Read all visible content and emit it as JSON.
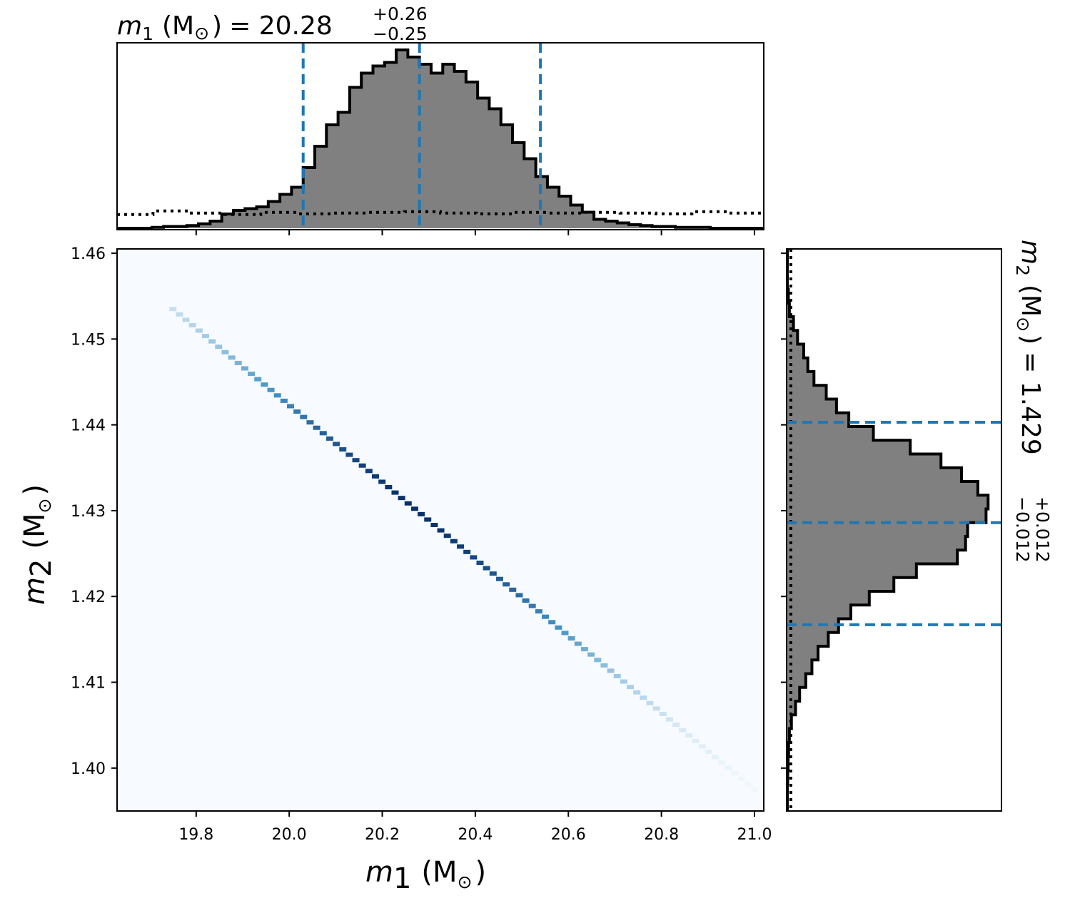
{
  "chart_data": {
    "type": "corner",
    "colors": {
      "hist_fill": "#808080",
      "hist_edge": "#000000",
      "quantile_line": "#1f77b4",
      "prior_line": "#000000",
      "density_low": "#f7fbff",
      "density_high": "#08306b"
    },
    "top_title": {
      "param": "m",
      "sub": "1",
      "unit": "(M",
      "sun": "⊙",
      "close": ")",
      "eq": "= 20.28",
      "plus": "+0.26",
      "minus": "−0.25"
    },
    "right_title": {
      "param": "m",
      "sub": "2",
      "unit": "(M",
      "sun": "⊙",
      "close": ")",
      "eq": "= 1.429",
      "plus": "+0.012",
      "minus": "−0.012"
    },
    "x_axis": {
      "param": "m",
      "sub": "1",
      "unit": "(M",
      "sun": "⊙",
      "close": ")",
      "range": [
        19.63,
        21.02
      ],
      "ticks": [
        19.8,
        20.0,
        20.2,
        20.4,
        20.6,
        20.8,
        21.0
      ],
      "tick_labels": [
        "19.8",
        "20.0",
        "20.2",
        "20.4",
        "20.6",
        "20.8",
        "21.0"
      ]
    },
    "y_axis": {
      "param": "m",
      "sub": "2",
      "unit": "(M",
      "sun": "⊙",
      "close": ")",
      "range": [
        1.395,
        1.4605
      ],
      "ticks": [
        1.4,
        1.41,
        1.42,
        1.43,
        1.44,
        1.45,
        1.46
      ],
      "tick_labels": [
        "1.40",
        "1.41",
        "1.42",
        "1.43",
        "1.44",
        "1.45",
        "1.46"
      ]
    },
    "m1_hist": {
      "bin_edges": [
        19.63,
        19.655,
        19.68,
        19.705,
        19.73,
        19.755,
        19.78,
        19.805,
        19.83,
        19.855,
        19.88,
        19.905,
        19.93,
        19.955,
        19.98,
        20.005,
        20.03,
        20.055,
        20.08,
        20.105,
        20.13,
        20.155,
        20.18,
        20.205,
        20.23,
        20.255,
        20.28,
        20.305,
        20.33,
        20.355,
        20.38,
        20.405,
        20.43,
        20.455,
        20.48,
        20.505,
        20.53,
        20.555,
        20.58,
        20.605,
        20.63,
        20.655,
        20.68,
        20.705,
        20.73,
        20.755,
        20.78,
        20.805,
        20.83,
        20.855,
        20.88,
        20.905,
        20.93,
        20.955,
        20.98,
        21.005,
        21.02
      ],
      "counts": [
        0,
        0,
        0,
        0.005,
        0.01,
        0.01,
        0.015,
        0.025,
        0.04,
        0.08,
        0.1,
        0.11,
        0.12,
        0.15,
        0.19,
        0.23,
        0.34,
        0.46,
        0.58,
        0.65,
        0.79,
        0.87,
        0.91,
        0.93,
        1.0,
        0.96,
        0.92,
        0.87,
        0.92,
        0.88,
        0.82,
        0.73,
        0.67,
        0.58,
        0.48,
        0.39,
        0.29,
        0.23,
        0.18,
        0.13,
        0.09,
        0.05,
        0.04,
        0.03,
        0.02,
        0.015,
        0.01,
        0.01,
        0.005,
        0.005,
        0.005,
        0,
        0,
        0,
        0,
        0
      ],
      "quantiles": [
        20.03,
        20.28,
        20.54
      ],
      "prior_level": 0.085
    },
    "m2_hist": {
      "bin_edges": [
        1.395,
        1.3966,
        1.3982,
        1.3998,
        1.4014,
        1.403,
        1.4046,
        1.4062,
        1.4078,
        1.4094,
        1.411,
        1.4126,
        1.4142,
        1.4158,
        1.4174,
        1.419,
        1.4206,
        1.4222,
        1.4238,
        1.4254,
        1.427,
        1.4286,
        1.4302,
        1.4318,
        1.4334,
        1.435,
        1.4366,
        1.4382,
        1.4398,
        1.4414,
        1.443,
        1.4446,
        1.4462,
        1.4478,
        1.4494,
        1.451,
        1.4526,
        1.4542,
        1.4558,
        1.4574,
        1.459,
        1.4605
      ],
      "counts": [
        0,
        0,
        0.002,
        0.004,
        0.006,
        0.01,
        0.02,
        0.04,
        0.06,
        0.09,
        0.12,
        0.15,
        0.2,
        0.25,
        0.31,
        0.4,
        0.52,
        0.63,
        0.83,
        0.87,
        0.88,
        0.97,
        0.98,
        0.93,
        0.85,
        0.75,
        0.6,
        0.42,
        0.3,
        0.24,
        0.19,
        0.13,
        0.1,
        0.08,
        0.05,
        0.03,
        0.01,
        0.005,
        0,
        0,
        0
      ],
      "quantiles": [
        1.4167,
        1.4286,
        1.4403
      ],
      "prior_level": 0.01
    },
    "density_line": {
      "m1_start": 19.75,
      "m2_start": 1.4535,
      "m1_end": 21.0,
      "m2_end": 1.3975,
      "peak_m1": 20.27,
      "peak_m2": 1.4275
    }
  }
}
